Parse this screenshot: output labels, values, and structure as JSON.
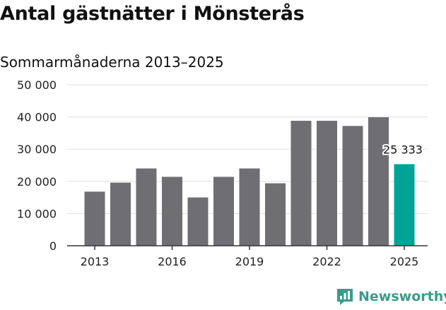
{
  "chart_data": {
    "type": "bar",
    "title": "Antal gästnätter i Mönsterås",
    "subtitle": "Sommarmånaderna 2013–2025",
    "categories": [
      "2013",
      "2014",
      "2015",
      "2016",
      "2017",
      "2018",
      "2019",
      "2020",
      "2021",
      "2022",
      "2023",
      "2024",
      "2025"
    ],
    "values": [
      16800,
      19600,
      24000,
      21400,
      15000,
      21400,
      24000,
      19400,
      38800,
      38800,
      37200,
      39900,
      25333
    ],
    "x_tick_labels": [
      "2013",
      "2016",
      "2019",
      "2022",
      "2025"
    ],
    "y_tick_labels": [
      "0",
      "10 000",
      "20 000",
      "30 000",
      "40 000",
      "50 000"
    ],
    "ylim": [
      0,
      50000
    ],
    "grid": true,
    "highlight_index": 12,
    "highlight_label": "25 333",
    "colors": {
      "bar": "#6f6e73",
      "highlight": "#00a497",
      "grid": "#dddddd",
      "axis": "#333333"
    }
  },
  "branding": {
    "name": "Newsworthy",
    "color": "#3c9b8a",
    "icon": "newsworthy-logo-icon"
  }
}
